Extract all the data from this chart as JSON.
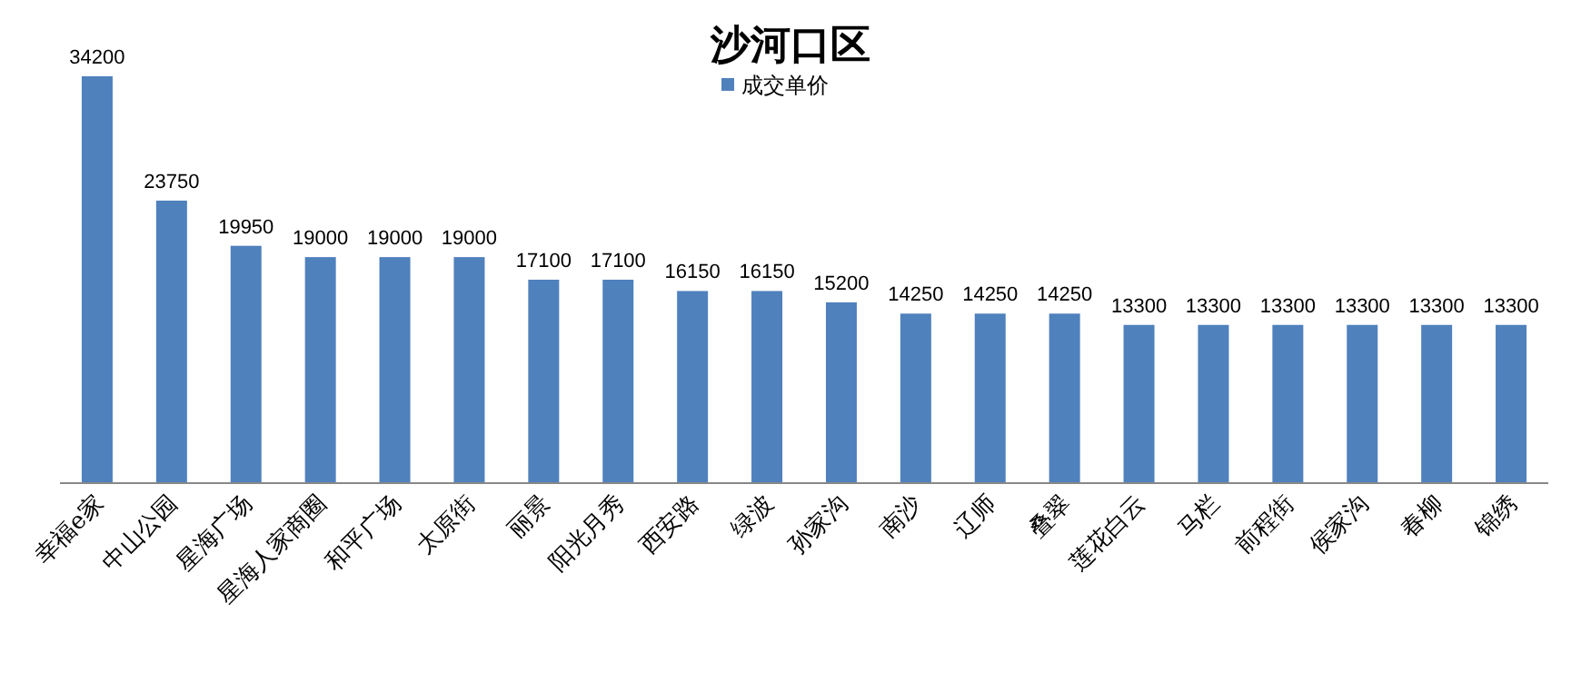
{
  "chart_data": {
    "type": "bar",
    "title": "沙河口区",
    "categories": [
      "幸福e家",
      "中山公园",
      "星海广场",
      "星海人家商圈",
      "和平广场",
      "太原街",
      "丽景",
      "阳光月秀",
      "西安路",
      "绿波",
      "孙家沟",
      "南沙",
      "辽师",
      "叠翠",
      "莲花白云",
      "马栏",
      "前程街",
      "侯家沟",
      "春柳",
      "锦绣"
    ],
    "series": [
      {
        "name": "成交单价",
        "color": "#4f81bd",
        "values": [
          34200,
          23750,
          19950,
          19000,
          19000,
          19000,
          17100,
          17100,
          16150,
          16150,
          15200,
          14250,
          14250,
          14250,
          13300,
          13300,
          13300,
          13300,
          13300,
          13300
        ]
      }
    ],
    "data_labels": true,
    "legend": "top"
  }
}
